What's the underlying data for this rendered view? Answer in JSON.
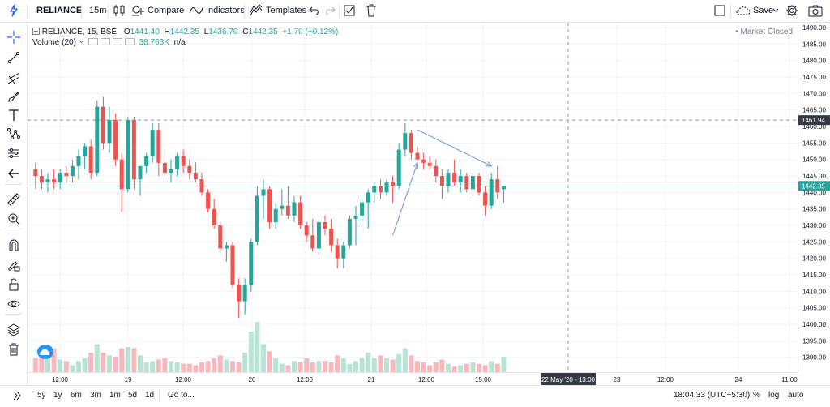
{
  "toolbar": {
    "symbol": "RELIANCE",
    "interval": "15m",
    "compare": "Compare",
    "indicators": "Indicators",
    "templates": "Templates",
    "save": "Save"
  },
  "legend": {
    "title": "RELIANCE, 15, BSE",
    "open_label": "O",
    "open": "1441.40",
    "high_label": "H",
    "high": "1442.35",
    "low_label": "L",
    "low": "1436.70",
    "close_label": "C",
    "close": "1442.35",
    "change": "+1.70 (+0.12%)",
    "volume_title": "Volume (20)",
    "volume_value": "38.763K",
    "volume_ma": "n/a",
    "market_status": "Market Closed"
  },
  "price_axis": {
    "ticks": [
      "1490.00",
      "1485.00",
      "1480.00",
      "1475.00",
      "1470.00",
      "1465.00",
      "1460.00",
      "1455.00",
      "1450.00",
      "1445.00",
      "1440.00",
      "1435.00",
      "1430.00",
      "1425.00",
      "1420.00",
      "1415.00",
      "1410.00",
      "1405.00",
      "1400.00",
      "1395.00",
      "1390.00"
    ],
    "crosshair_label": "1461.94",
    "last_price_label": "1442.35"
  },
  "time_axis": {
    "ticks": [
      "12:00",
      "19",
      "12:00",
      "20",
      "12:00",
      "21",
      "12:00",
      "15:00",
      "23",
      "12:00",
      "24",
      "11:00"
    ],
    "crosshair_label": "22 May '20 - 13:00"
  },
  "bottom": {
    "ranges": [
      "5y",
      "1y",
      "6m",
      "3m",
      "1m",
      "5d",
      "1d"
    ],
    "goto": "Go to...",
    "clock": "18:04:33 (UTC+5:30)",
    "percent": "%",
    "log": "log",
    "auto": "auto"
  },
  "colors": {
    "up": "#26a69a",
    "down": "#ef5350",
    "up_volume": "#b9e3d4",
    "down_volume": "#f7b9bd",
    "accent": "#2962ff",
    "drawing": "#7f9fd8"
  },
  "chart_data": {
    "type": "candlestick",
    "symbol": "RELIANCE",
    "interval": "15",
    "exchange": "BSE",
    "ylim": [
      1386,
      1491
    ],
    "y_ticks": [
      1490,
      1485,
      1480,
      1475,
      1470,
      1465,
      1460,
      1455,
      1450,
      1445,
      1440,
      1435,
      1430,
      1425,
      1420,
      1415,
      1410,
      1405,
      1400,
      1395,
      1390
    ],
    "candles": [
      {
        "o": 1447,
        "h": 1449,
        "l": 1441,
        "c": 1445
      },
      {
        "o": 1445,
        "h": 1447,
        "l": 1441,
        "c": 1443
      },
      {
        "o": 1443,
        "h": 1446,
        "l": 1440,
        "c": 1444
      },
      {
        "o": 1444,
        "h": 1447,
        "l": 1441,
        "c": 1443
      },
      {
        "o": 1443,
        "h": 1447,
        "l": 1441,
        "c": 1446
      },
      {
        "o": 1446,
        "h": 1448,
        "l": 1443,
        "c": 1445
      },
      {
        "o": 1445,
        "h": 1450,
        "l": 1443,
        "c": 1448
      },
      {
        "o": 1448,
        "h": 1453,
        "l": 1444,
        "c": 1451
      },
      {
        "o": 1451,
        "h": 1455,
        "l": 1447,
        "c": 1454
      },
      {
        "o": 1454,
        "h": 1456,
        "l": 1444,
        "c": 1446
      },
      {
        "o": 1446,
        "h": 1468,
        "l": 1445,
        "c": 1466
      },
      {
        "o": 1466,
        "h": 1469,
        "l": 1453,
        "c": 1455
      },
      {
        "o": 1455,
        "h": 1466,
        "l": 1452,
        "c": 1462
      },
      {
        "o": 1462,
        "h": 1464,
        "l": 1448,
        "c": 1450
      },
      {
        "o": 1450,
        "h": 1452,
        "l": 1434,
        "c": 1441
      },
      {
        "o": 1441,
        "h": 1463,
        "l": 1440,
        "c": 1462
      },
      {
        "o": 1462,
        "h": 1463,
        "l": 1441,
        "c": 1444
      },
      {
        "o": 1444,
        "h": 1448,
        "l": 1439,
        "c": 1448
      },
      {
        "o": 1448,
        "h": 1452,
        "l": 1446,
        "c": 1451
      },
      {
        "o": 1451,
        "h": 1461,
        "l": 1449,
        "c": 1459
      },
      {
        "o": 1459,
        "h": 1461,
        "l": 1445,
        "c": 1449
      },
      {
        "o": 1449,
        "h": 1453,
        "l": 1444,
        "c": 1446
      },
      {
        "o": 1446,
        "h": 1450,
        "l": 1443,
        "c": 1447
      },
      {
        "o": 1447,
        "h": 1452,
        "l": 1445,
        "c": 1451
      },
      {
        "o": 1451,
        "h": 1453,
        "l": 1446,
        "c": 1448
      },
      {
        "o": 1448,
        "h": 1450,
        "l": 1444,
        "c": 1446
      },
      {
        "o": 1446,
        "h": 1449,
        "l": 1443,
        "c": 1444
      },
      {
        "o": 1444,
        "h": 1446,
        "l": 1439,
        "c": 1440
      },
      {
        "o": 1440,
        "h": 1441,
        "l": 1434,
        "c": 1435
      },
      {
        "o": 1435,
        "h": 1438,
        "l": 1429,
        "c": 1430
      },
      {
        "o": 1430,
        "h": 1431,
        "l": 1422,
        "c": 1423
      },
      {
        "o": 1423,
        "h": 1425,
        "l": 1419,
        "c": 1424
      },
      {
        "o": 1424,
        "h": 1425,
        "l": 1411,
        "c": 1412
      },
      {
        "o": 1412,
        "h": 1414,
        "l": 1402,
        "c": 1407
      },
      {
        "o": 1407,
        "h": 1414,
        "l": 1403,
        "c": 1412
      },
      {
        "o": 1412,
        "h": 1426,
        "l": 1410,
        "c": 1425
      },
      {
        "o": 1425,
        "h": 1442,
        "l": 1424,
        "c": 1439
      },
      {
        "o": 1439,
        "h": 1444,
        "l": 1432,
        "c": 1441
      },
      {
        "o": 1441,
        "h": 1442,
        "l": 1429,
        "c": 1431
      },
      {
        "o": 1431,
        "h": 1437,
        "l": 1429,
        "c": 1435
      },
      {
        "o": 1435,
        "h": 1441,
        "l": 1433,
        "c": 1436
      },
      {
        "o": 1436,
        "h": 1442,
        "l": 1432,
        "c": 1433
      },
      {
        "o": 1433,
        "h": 1439,
        "l": 1431,
        "c": 1437
      },
      {
        "o": 1437,
        "h": 1439,
        "l": 1429,
        "c": 1430
      },
      {
        "o": 1430,
        "h": 1431,
        "l": 1425,
        "c": 1427
      },
      {
        "o": 1427,
        "h": 1432,
        "l": 1422,
        "c": 1423
      },
      {
        "o": 1423,
        "h": 1432,
        "l": 1421,
        "c": 1431
      },
      {
        "o": 1431,
        "h": 1433,
        "l": 1427,
        "c": 1429
      },
      {
        "o": 1429,
        "h": 1432,
        "l": 1422,
        "c": 1424
      },
      {
        "o": 1424,
        "h": 1426,
        "l": 1417,
        "c": 1420
      },
      {
        "o": 1420,
        "h": 1425,
        "l": 1417,
        "c": 1424
      },
      {
        "o": 1424,
        "h": 1433,
        "l": 1423,
        "c": 1432
      },
      {
        "o": 1432,
        "h": 1436,
        "l": 1424,
        "c": 1433
      },
      {
        "o": 1433,
        "h": 1438,
        "l": 1431,
        "c": 1437
      },
      {
        "o": 1437,
        "h": 1441,
        "l": 1429,
        "c": 1440
      },
      {
        "o": 1440,
        "h": 1443,
        "l": 1437,
        "c": 1442
      },
      {
        "o": 1442,
        "h": 1444,
        "l": 1438,
        "c": 1440
      },
      {
        "o": 1440,
        "h": 1444,
        "l": 1439,
        "c": 1443
      },
      {
        "o": 1443,
        "h": 1445,
        "l": 1437,
        "c": 1442
      },
      {
        "o": 1442,
        "h": 1455,
        "l": 1441,
        "c": 1453
      },
      {
        "o": 1453,
        "h": 1461,
        "l": 1451,
        "c": 1458
      },
      {
        "o": 1458,
        "h": 1459,
        "l": 1450,
        "c": 1452
      },
      {
        "o": 1452,
        "h": 1454,
        "l": 1450,
        "c": 1450
      },
      {
        "o": 1450,
        "h": 1452,
        "l": 1447,
        "c": 1449
      },
      {
        "o": 1449,
        "h": 1451,
        "l": 1447,
        "c": 1448
      },
      {
        "o": 1448,
        "h": 1450,
        "l": 1443,
        "c": 1445
      },
      {
        "o": 1445,
        "h": 1447,
        "l": 1438,
        "c": 1442
      },
      {
        "o": 1442,
        "h": 1447,
        "l": 1440,
        "c": 1446
      },
      {
        "o": 1446,
        "h": 1450,
        "l": 1442,
        "c": 1443
      },
      {
        "o": 1443,
        "h": 1447,
        "l": 1440,
        "c": 1445
      },
      {
        "o": 1445,
        "h": 1446,
        "l": 1440,
        "c": 1441
      },
      {
        "o": 1441,
        "h": 1446,
        "l": 1439,
        "c": 1445
      },
      {
        "o": 1445,
        "h": 1446,
        "l": 1439,
        "c": 1440
      },
      {
        "o": 1440,
        "h": 1442,
        "l": 1433,
        "c": 1436
      },
      {
        "o": 1436,
        "h": 1446,
        "l": 1435,
        "c": 1444
      },
      {
        "o": 1444,
        "h": 1448,
        "l": 1438,
        "c": 1440
      },
      {
        "o": 1441,
        "h": 1442,
        "l": 1437,
        "c": 1442
      }
    ],
    "volume": [
      10,
      12,
      14,
      17,
      9,
      8,
      5,
      8,
      10,
      14,
      20,
      14,
      12,
      11,
      17,
      18,
      17,
      12,
      7,
      8,
      9,
      10,
      8,
      7,
      6,
      6,
      5,
      7,
      8,
      10,
      12,
      9,
      8,
      7,
      14,
      29,
      36,
      20,
      15,
      10,
      6,
      5,
      8,
      7,
      10,
      7,
      8,
      8,
      7,
      12,
      10,
      6,
      8,
      10,
      14,
      10,
      12,
      10,
      9,
      13,
      17,
      12,
      8,
      7,
      5,
      7,
      9,
      6,
      4,
      5,
      6,
      7,
      6,
      5,
      8,
      6,
      11
    ],
    "annotations": [
      {
        "type": "arrow",
        "from": {
          "bar": 58,
          "price": 1427
        },
        "to": {
          "bar": 62,
          "price": 1449
        }
      },
      {
        "type": "arrow",
        "from": {
          "bar": 62,
          "price": 1459
        },
        "to": {
          "bar": 74,
          "price": 1448
        }
      }
    ]
  }
}
